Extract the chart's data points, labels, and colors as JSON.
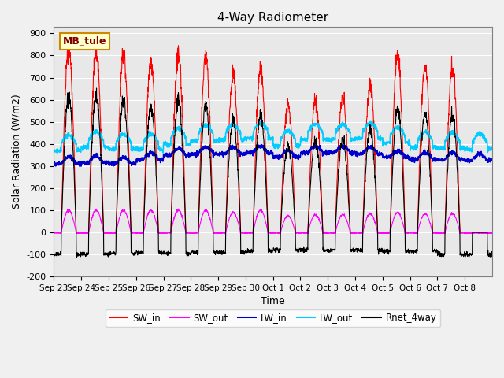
{
  "title": "4-Way Radiometer",
  "xlabel": "Time",
  "ylabel": "Solar Radiation (W/m2)",
  "ylim": [
    -200,
    930
  ],
  "yticks": [
    -200,
    -100,
    0,
    100,
    200,
    300,
    400,
    500,
    600,
    700,
    800,
    900
  ],
  "x_labels": [
    "Sep 23",
    "Sep 24",
    "Sep 25",
    "Sep 26",
    "Sep 27",
    "Sep 28",
    "Sep 29",
    "Sep 30",
    "Oct 1",
    "Oct 2",
    "Oct 3",
    "Oct 4",
    "Oct 5",
    "Oct 6",
    "Oct 7",
    "Oct 8"
  ],
  "station_label": "MB_tule",
  "colors": {
    "SW_in": "#ff0000",
    "SW_out": "#ff00ff",
    "LW_in": "#0000cc",
    "LW_out": "#00ccff",
    "Rnet_4way": "#000000"
  },
  "plot_bg_color": "#e8e8e8",
  "fig_bg_color": "#f0f0f0",
  "n_days": 16,
  "sw_in_peaks": [
    835,
    820,
    810,
    775,
    795,
    795,
    720,
    740,
    575,
    600,
    610,
    670,
    805,
    760,
    750,
    0
  ],
  "sw_out_peaks": [
    100,
    100,
    100,
    100,
    100,
    100,
    90,
    100,
    75,
    80,
    80,
    85,
    90,
    85,
    85,
    0
  ],
  "lw_in_base": [
    310,
    315,
    310,
    330,
    350,
    355,
    355,
    360,
    340,
    360,
    360,
    355,
    340,
    330,
    330,
    325
  ],
  "lw_out_base": [
    400,
    415,
    405,
    405,
    430,
    445,
    450,
    455,
    420,
    450,
    450,
    455,
    435,
    415,
    410,
    405
  ],
  "rnet_peaks": [
    615,
    620,
    600,
    570,
    595,
    575,
    510,
    530,
    390,
    415,
    420,
    470,
    560,
    545,
    535,
    0
  ],
  "rnet_night": [
    -100,
    -100,
    -95,
    -90,
    -95,
    -90,
    -90,
    -85,
    -80,
    -80,
    -80,
    -80,
    -85,
    -85,
    -100,
    -100
  ]
}
